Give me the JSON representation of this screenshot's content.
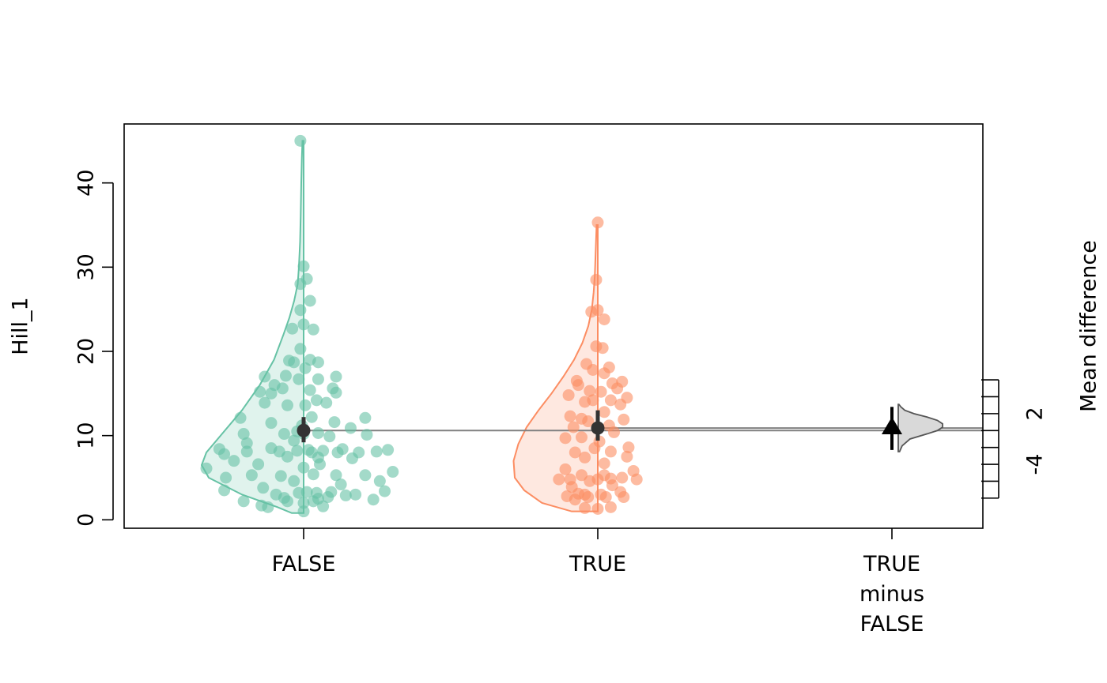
{
  "chart_data": {
    "type": "estimation-plot",
    "categories": [
      "FALSE",
      "TRUE"
    ],
    "delta_label_lines": [
      "TRUE",
      "minus",
      "FALSE"
    ],
    "ylabel": "Hill_1",
    "ylabel_right": "Mean difference",
    "ylim": [
      -1,
      47
    ],
    "y_ticks": [
      0,
      10,
      20,
      30,
      40
    ],
    "y_tick_labels": [
      "0",
      "10",
      "20",
      "30",
      "40"
    ],
    "right_ticks": [
      -8,
      -6,
      -4,
      -2,
      0,
      2,
      4,
      6
    ],
    "right_tick_labels": [
      "-4",
      "2"
    ],
    "right_tick_label_values": [
      -4,
      2
    ],
    "right_zero_at": 10.6,
    "colors": {
      "FALSE": "#66c2a5",
      "TRUE": "#fc8d62",
      "summary": "#333333",
      "delta_fill": "#d9d9d9",
      "delta_stroke": "#555555",
      "mean_line": "#808080"
    },
    "groups": [
      {
        "name": "FALSE",
        "mean": 10.6,
        "ci": [
          9.2,
          12.2
        ],
        "violin": [
          [
            0.8,
            0.1
          ],
          [
            1.5,
            0.22
          ],
          [
            3,
            0.52
          ],
          [
            5,
            0.8
          ],
          [
            6.5,
            0.86
          ],
          [
            8,
            0.82
          ],
          [
            10,
            0.7
          ],
          [
            13,
            0.52
          ],
          [
            16,
            0.37
          ],
          [
            19,
            0.25
          ],
          [
            22,
            0.17
          ],
          [
            24,
            0.12
          ],
          [
            26,
            0.08
          ],
          [
            28,
            0.05
          ],
          [
            30,
            0.04
          ],
          [
            33,
            0.03
          ],
          [
            36,
            0.025
          ],
          [
            40,
            0.02
          ],
          [
            43,
            0.015
          ],
          [
            45,
            0.01
          ]
        ],
        "points": [
          [
            -0.02,
            45
          ],
          [
            0.0,
            30.1
          ],
          [
            0.02,
            28.6
          ],
          [
            -0.02,
            28
          ],
          [
            0.04,
            26
          ],
          [
            -0.02,
            24.9
          ],
          [
            0.0,
            23.2
          ],
          [
            0.06,
            22.6
          ],
          [
            -0.07,
            22.7
          ],
          [
            -0.02,
            20.3
          ],
          [
            -0.09,
            18.9
          ],
          [
            -0.06,
            18.7
          ],
          [
            0.04,
            19
          ],
          [
            0.09,
            18.7
          ],
          [
            0.01,
            18
          ],
          [
            -0.24,
            17
          ],
          [
            -0.11,
            17.1
          ],
          [
            0.09,
            16.7
          ],
          [
            -0.18,
            16
          ],
          [
            -0.03,
            16.7
          ],
          [
            0.2,
            17
          ],
          [
            -0.13,
            15.6
          ],
          [
            0.04,
            15.4
          ],
          [
            0.18,
            15.6
          ],
          [
            -0.27,
            15.2
          ],
          [
            -0.2,
            15
          ],
          [
            0.2,
            15.1
          ],
          [
            -0.24,
            13.9
          ],
          [
            0.08,
            14.2
          ],
          [
            -0.1,
            13.6
          ],
          [
            0.14,
            13.9
          ],
          [
            0.01,
            13.6
          ],
          [
            -0.39,
            12.1
          ],
          [
            -0.2,
            11.5
          ],
          [
            0.05,
            12.2
          ],
          [
            0.19,
            11.6
          ],
          [
            0.38,
            12.1
          ],
          [
            -0.01,
            11.2
          ],
          [
            -0.04,
            10.5
          ],
          [
            0.0,
            10.2
          ],
          [
            0.09,
            10.3
          ],
          [
            0.16,
            9.9
          ],
          [
            -0.37,
            10.2
          ],
          [
            0.29,
            10.9
          ],
          [
            -0.12,
            10.2
          ],
          [
            0.39,
            10.1
          ],
          [
            -0.35,
            9.1
          ],
          [
            -0.06,
            9.4
          ],
          [
            0.24,
            8.4
          ],
          [
            0.03,
            8.3
          ],
          [
            -0.52,
            8.4
          ],
          [
            -0.49,
            7.8
          ],
          [
            -0.2,
            8.5
          ],
          [
            -0.35,
            8.1
          ],
          [
            -0.15,
            8.1
          ],
          [
            -0.04,
            8.2
          ],
          [
            0.12,
            8.2
          ],
          [
            0.21,
            8.0
          ],
          [
            0.34,
            8.0
          ],
          [
            0.45,
            8.1
          ],
          [
            0.52,
            8.3
          ],
          [
            0.05,
            8.0
          ],
          [
            -0.43,
            7.0
          ],
          [
            -0.28,
            6.6
          ],
          [
            -0.1,
            7.5
          ],
          [
            0.09,
            7.4
          ],
          [
            0.3,
            7.3
          ],
          [
            0.1,
            6.6
          ],
          [
            -0.6,
            6.1
          ],
          [
            0.0,
            6.2
          ],
          [
            -0.48,
            5.0
          ],
          [
            -0.32,
            5.3
          ],
          [
            -0.14,
            5.2
          ],
          [
            0.06,
            5.4
          ],
          [
            0.2,
            5.3
          ],
          [
            0.38,
            5.3
          ],
          [
            0.47,
            4.6
          ],
          [
            0.55,
            5.7
          ],
          [
            -0.06,
            4.6
          ],
          [
            -0.25,
            3.8
          ],
          [
            -0.49,
            3.5
          ],
          [
            -0.03,
            3.2
          ],
          [
            0.08,
            3.2
          ],
          [
            0.17,
            3.3
          ],
          [
            0.32,
            3.0
          ],
          [
            0.5,
            3.4
          ],
          [
            0.23,
            4.2
          ],
          [
            0.02,
            3.3
          ],
          [
            -0.17,
            3.0
          ],
          [
            -0.12,
            2.6
          ],
          [
            0.15,
            2.7
          ],
          [
            0.26,
            2.9
          ],
          [
            0.43,
            2.4
          ],
          [
            -0.37,
            2.2
          ],
          [
            -0.26,
            1.7
          ],
          [
            -0.1,
            2.2
          ],
          [
            0.0,
            2.0
          ],
          [
            0.06,
            2.2
          ],
          [
            0.12,
            1.6
          ],
          [
            -0.22,
            1.5
          ],
          [
            0.0,
            1.0
          ],
          [
            0.09,
            2.5
          ]
        ]
      },
      {
        "name": "TRUE",
        "mean": 10.9,
        "ci": [
          9.4,
          13.0
        ],
        "violin": [
          [
            1,
            0.22
          ],
          [
            2,
            0.47
          ],
          [
            3.5,
            0.62
          ],
          [
            5,
            0.7
          ],
          [
            7,
            0.71
          ],
          [
            9,
            0.67
          ],
          [
            11,
            0.6
          ],
          [
            13,
            0.5
          ],
          [
            15,
            0.39
          ],
          [
            17,
            0.29
          ],
          [
            19,
            0.2
          ],
          [
            21,
            0.13
          ],
          [
            23,
            0.08
          ],
          [
            25,
            0.05
          ],
          [
            27,
            0.035
          ],
          [
            29,
            0.025
          ],
          [
            31,
            0.02
          ],
          [
            33,
            0.015
          ],
          [
            35,
            0.01
          ]
        ],
        "points": [
          [
            0.0,
            35.3
          ],
          [
            -0.01,
            28.5
          ],
          [
            -0.04,
            24.7
          ],
          [
            0.0,
            24.9
          ],
          [
            0.04,
            23.8
          ],
          [
            -0.01,
            20.6
          ],
          [
            0.03,
            20.4
          ],
          [
            -0.07,
            18.5
          ],
          [
            0.07,
            18.1
          ],
          [
            -0.03,
            17.8
          ],
          [
            0.04,
            17.4
          ],
          [
            -0.13,
            16.5
          ],
          [
            0.09,
            16.2
          ],
          [
            0.15,
            16.4
          ],
          [
            -0.12,
            16.0
          ],
          [
            -0.05,
            15.3
          ],
          [
            0.02,
            15.2
          ],
          [
            0.12,
            15.6
          ],
          [
            -0.18,
            14.8
          ],
          [
            0.18,
            14.5
          ],
          [
            -0.03,
            14.2
          ],
          [
            -0.08,
            14.0
          ],
          [
            0.08,
            14.2
          ],
          [
            0.14,
            13.7
          ],
          [
            -0.17,
            12.3
          ],
          [
            -0.1,
            12.0
          ],
          [
            0.04,
            12.8
          ],
          [
            0.16,
            11.9
          ],
          [
            -0.15,
            11.0
          ],
          [
            -0.06,
            11.7
          ],
          [
            0.0,
            11.0
          ],
          [
            0.07,
            11.2
          ],
          [
            0.1,
            10.4
          ],
          [
            -0.2,
            9.7
          ],
          [
            -0.1,
            9.8
          ],
          [
            0.01,
            9.3
          ],
          [
            0.19,
            8.6
          ],
          [
            -0.02,
            8.5
          ],
          [
            0.08,
            8.1
          ],
          [
            -0.14,
            8.0
          ],
          [
            -0.08,
            7.4
          ],
          [
            0.04,
            6.7
          ],
          [
            0.18,
            7.5
          ],
          [
            -0.2,
            6.0
          ],
          [
            -0.1,
            5.3
          ],
          [
            0.04,
            5.3
          ],
          [
            0.08,
            4.9
          ],
          [
            0.15,
            5.0
          ],
          [
            0.22,
            5.8
          ],
          [
            0.24,
            4.8
          ],
          [
            -0.24,
            4.8
          ],
          [
            -0.17,
            4.8
          ],
          [
            -0.05,
            4.6
          ],
          [
            0.0,
            4.8
          ],
          [
            0.09,
            4.1
          ],
          [
            -0.12,
            3.1
          ],
          [
            -0.08,
            3.0
          ],
          [
            0.02,
            3.0
          ],
          [
            0.05,
            2.7
          ],
          [
            0.14,
            3.3
          ],
          [
            0.16,
            2.7
          ],
          [
            -0.16,
            3.9
          ],
          [
            -0.19,
            2.8
          ],
          [
            -0.14,
            2.4
          ],
          [
            -0.06,
            2.7
          ],
          [
            -0.08,
            1.4
          ],
          [
            0.0,
            1.3
          ],
          [
            0.08,
            1.5
          ]
        ]
      }
    ],
    "delta": {
      "mean_diff": 0.3,
      "ci": [
        -2.3,
        2.8
      ],
      "distribution": [
        [
          -2.5,
          0.01
        ],
        [
          -1.8,
          0.03
        ],
        [
          -1.0,
          0.09
        ],
        [
          -0.4,
          0.22
        ],
        [
          0.0,
          0.3
        ],
        [
          0.4,
          0.34
        ],
        [
          0.8,
          0.34
        ],
        [
          1.2,
          0.3
        ],
        [
          1.6,
          0.22
        ],
        [
          2.0,
          0.12
        ],
        [
          2.4,
          0.05
        ],
        [
          2.8,
          0.02
        ],
        [
          3.1,
          0.005
        ]
      ]
    }
  }
}
